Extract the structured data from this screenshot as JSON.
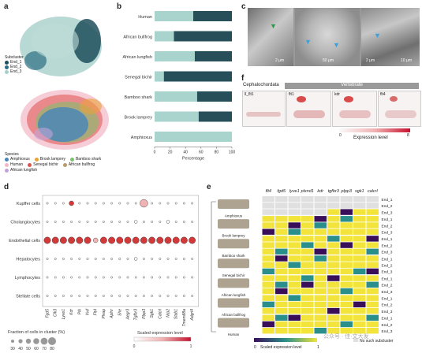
{
  "panels": {
    "a": "a",
    "b": "b",
    "c": "c",
    "d": "d",
    "e": "e",
    "f": "f"
  },
  "panel_a": {
    "subcluster_title": "Subcluster",
    "subclusters": [
      {
        "label": "End_1",
        "color": "#1f4f5c"
      },
      {
        "label": "End_2",
        "color": "#2c6f82"
      },
      {
        "label": "End_3",
        "color": "#a8d0cb"
      }
    ],
    "species_title": "Species",
    "species": [
      {
        "label": "Amphioxus",
        "color": "#4b87b6"
      },
      {
        "label": "Brook lamprey",
        "color": "#e9a23b"
      },
      {
        "label": "Bamboo shark",
        "color": "#79c36a"
      },
      {
        "label": "Human",
        "color": "#f2b8c6"
      },
      {
        "label": "Senegal bichir",
        "color": "#e0524f"
      },
      {
        "label": "African bullfrog",
        "color": "#b89a6b"
      },
      {
        "label": "African lungfish",
        "color": "#c2a3d8"
      }
    ]
  },
  "chart_data": [
    {
      "type": "bar",
      "orientation": "horizontal",
      "stacked": true,
      "categories": [
        "Human",
        "African bullfrog",
        "African lungfish",
        "Senegal bichir",
        "Bamboo shark",
        "Brook lamprey",
        "Amphioxus"
      ],
      "series": [
        {
          "color": "#a9d3cd",
          "values": [
            50,
            25,
            52,
            12,
            55,
            57,
            100
          ]
        },
        {
          "color": "#264f59",
          "values": [
            50,
            75,
            48,
            88,
            45,
            43,
            0
          ]
        }
      ],
      "xlabel": "Percentage",
      "xticks": [
        "0",
        "20",
        "40",
        "60",
        "80",
        "100"
      ],
      "xlim": [
        0,
        100
      ],
      "colors": {
        "light": "#a9d3cd",
        "dark": "#264f59"
      }
    },
    {
      "type": "scatter",
      "subtype": "dotplot",
      "rows": [
        "Kupffer cells",
        "Cholangiocytes",
        "Endothelial cells",
        "Hepatocytes",
        "Lymphocytes",
        "Stellate cells"
      ],
      "cols": [
        "Fgd5",
        "Clk3",
        "Lyve1",
        "Kdr",
        "Ptk",
        "Vwf",
        "Flt4",
        "Plvap",
        "Aplnr",
        "She",
        "Aegr3",
        "Tgfbr3",
        "Plpp3",
        "Sgk1",
        "Calcrl",
        "Nrp2",
        "Stab1",
        "Tmem88a",
        "Adgrl4"
      ],
      "size_legend_title": "Fraction of cells in cluster (%)",
      "size_ticks": [
        "30",
        "40",
        "50",
        "60",
        "70",
        "80"
      ],
      "color_legend_title": "Scaled expression level",
      "color_ticks": [
        "0",
        "1"
      ]
    }
  ],
  "panel_c": {
    "scale_bars": [
      "2 μm",
      "50 μm",
      "2 μm",
      "10 μm"
    ]
  },
  "panel_f": {
    "group_left": "Cephalochordata",
    "group_right": "Vertebrate",
    "genes": [
      "ll_flt1",
      "flt1",
      "kdr",
      "flt4"
    ],
    "legend_title": "Expression level",
    "legend_min": "0",
    "legend_max": "8"
  },
  "panel_e": {
    "genes": [
      "flt4",
      "fgd5",
      "lyve1",
      "plxnd1",
      "kdr",
      "tgfbr3",
      "plpp3",
      "sgk1",
      "calcrl"
    ],
    "species": [
      {
        "name": "Amphioxus",
        "rows": [
          "End_1",
          "End_2",
          "End_3"
        ]
      },
      {
        "name": "Brook lamprey",
        "rows": [
          "End_1",
          "End_2",
          "End_3"
        ]
      },
      {
        "name": "Bamboo shark",
        "rows": [
          "End_1",
          "End_2",
          "End_3"
        ]
      },
      {
        "name": "Senegal bichir",
        "rows": [
          "End_1",
          "End_2",
          "End_3"
        ]
      },
      {
        "name": "African lungfish",
        "rows": [
          "End_1",
          "End_2",
          "End_3"
        ]
      },
      {
        "name": "African bullfrog",
        "rows": [
          "End_1",
          "End_2",
          "End_3"
        ]
      },
      {
        "name": "Human",
        "rows": [
          "End_1",
          "End_2",
          "End_3"
        ]
      }
    ],
    "legend_min": "0",
    "legend_label": "Scaled expression level",
    "legend_max": "1",
    "no_sub_label": "No such subcluster",
    "colors": {
      "low": "#3a0f5a",
      "mid": "#2a8f8a",
      "high": "#f2e43a",
      "na": "#e0e0e0"
    }
  },
  "watermark": "公众号 · 佳·文大发"
}
